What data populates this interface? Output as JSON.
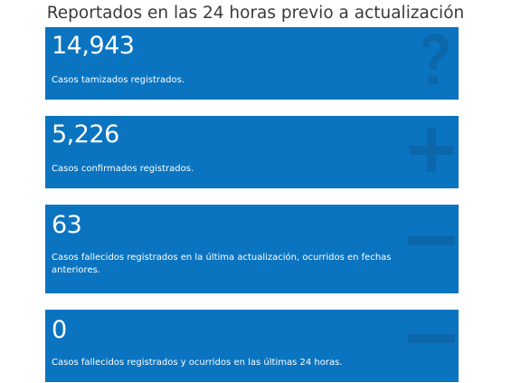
{
  "header": {
    "title": "Reportados en las 24 horas previo a actualización"
  },
  "colors": {
    "card_background": "#0a74c0",
    "icon_shade": "#0c67aa",
    "text": "#ffffff",
    "header_text": "#3a3a3a"
  },
  "cards": [
    {
      "value": "14,943",
      "label": "Casos tamizados registrados.",
      "icon": "question-mark-icon"
    },
    {
      "value": "5,226",
      "label": "Casos confirmados registrados.",
      "icon": "plus-icon"
    },
    {
      "value": "63",
      "label": "Casos fallecidos registrados en la última actualización, ocurridos en fechas anteriores.",
      "icon": "minus-icon"
    },
    {
      "value": "0",
      "label": "Casos fallecidos registrados y ocurridos en las últimas 24 horas.",
      "icon": "minus-icon"
    }
  ]
}
